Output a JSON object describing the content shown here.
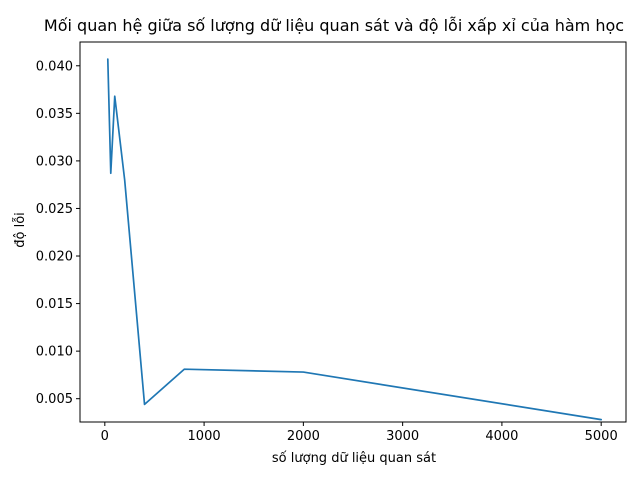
{
  "chart_data": {
    "type": "line",
    "title": "Mối quan hệ giữa số lượng dữ liệu quan sát và độ lỗi xấp xỉ của hàm học",
    "xlabel": "số lượng dữ liệu quan sát",
    "ylabel": "độ lỗi",
    "xlim": [
      -250,
      5250
    ],
    "ylim": [
      0.00255,
      0.0425
    ],
    "xticks": [
      0,
      1000,
      2000,
      3000,
      4000,
      5000
    ],
    "xtick_labels": [
      "0",
      "1000",
      "2000",
      "3000",
      "4000",
      "5000"
    ],
    "yticks": [
      0.005,
      0.01,
      0.015,
      0.02,
      0.025,
      0.03,
      0.035,
      0.04
    ],
    "ytick_labels": [
      "0.005",
      "0.010",
      "0.015",
      "0.020",
      "0.025",
      "0.030",
      "0.035",
      "0.040"
    ],
    "grid": false,
    "series": [
      {
        "color": "#1f77b4",
        "x": [
          30,
          60,
          100,
          200,
          400,
          800,
          2000,
          5000
        ],
        "y": [
          0.0407,
          0.0287,
          0.0368,
          0.028,
          0.0044,
          0.0081,
          0.0078,
          0.0028
        ]
      }
    ]
  }
}
